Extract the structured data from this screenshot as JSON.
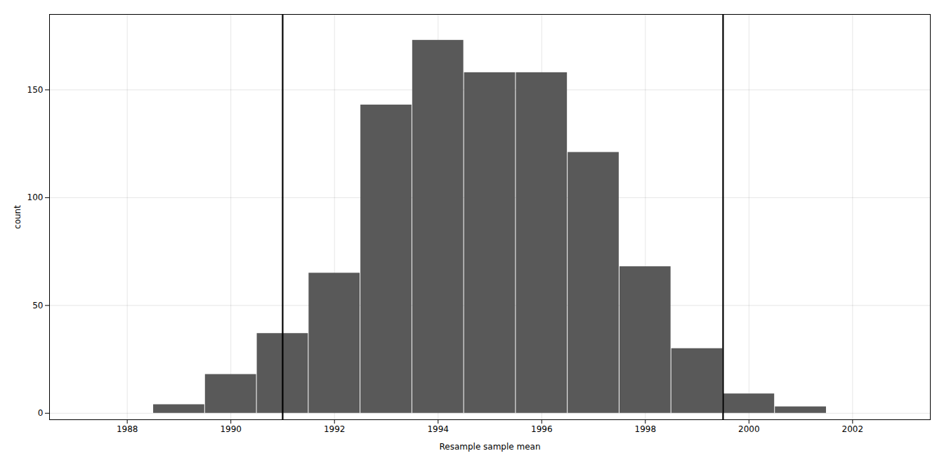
{
  "chart_data": {
    "type": "histogram",
    "bins": [
      1988.5,
      1989.5,
      1990.5,
      1991.5,
      1992.5,
      1993.5,
      1994.5,
      1995.5,
      1996.5,
      1997.5,
      1998.5,
      1999.5,
      2000.5,
      2001.5,
      2002.5
    ],
    "values": [
      4,
      18,
      37,
      65,
      143,
      173,
      158,
      158,
      121,
      68,
      30,
      9,
      3,
      0
    ],
    "color": "#595959",
    "xlabel": "Resample sample mean",
    "ylabel": "count",
    "xlim": [
      1986.5,
      2003.5
    ],
    "ylim": [
      -3,
      185
    ],
    "xticks": [
      1988,
      1990,
      1992,
      1994,
      1996,
      1998,
      2000,
      2002
    ],
    "yticks": [
      0,
      50,
      100,
      150
    ],
    "grid": true,
    "annotations": [
      {
        "type": "vline",
        "x": 1991.0,
        "color": "#000000"
      },
      {
        "type": "vline",
        "x": 1999.5,
        "color": "#000000"
      }
    ]
  }
}
